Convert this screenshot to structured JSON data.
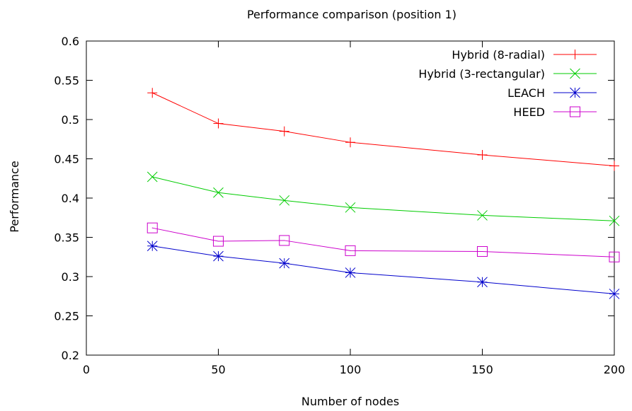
{
  "chart_data": {
    "type": "line",
    "title": "Performance comparison (position 1)",
    "xlabel": "Number of nodes",
    "ylabel": "Performance",
    "xlim": [
      0,
      200
    ],
    "ylim": [
      0.2,
      0.6
    ],
    "x_ticks": [
      0,
      50,
      100,
      150,
      200
    ],
    "x_tick_labels": [
      "0",
      "50",
      "100",
      "150",
      "200"
    ],
    "y_ticks": [
      0.2,
      0.25,
      0.3,
      0.35,
      0.4,
      0.45,
      0.5,
      0.55,
      0.6
    ],
    "y_tick_labels": [
      "0.2",
      "0.25",
      "0.3",
      "0.35",
      "0.4",
      "0.45",
      "0.5",
      "0.55",
      "0.6"
    ],
    "grid": false,
    "legend_position": "top-right",
    "x": [
      25,
      50,
      75,
      100,
      150,
      200
    ],
    "series": [
      {
        "name": "Hybrid (8-radial)",
        "values": [
          0.534,
          0.495,
          0.485,
          0.471,
          0.455,
          0.441
        ],
        "color": "#ff0000",
        "marker": "plus"
      },
      {
        "name": "Hybrid (3-rectangular)",
        "values": [
          0.427,
          0.407,
          0.397,
          0.388,
          0.378,
          0.371
        ],
        "color": "#00cc00",
        "marker": "cross"
      },
      {
        "name": "LEACH",
        "values": [
          0.339,
          0.326,
          0.317,
          0.305,
          0.293,
          0.278
        ],
        "color": "#0000cc",
        "marker": "asterisk"
      },
      {
        "name": "HEED",
        "values": [
          0.362,
          0.345,
          0.346,
          0.333,
          0.332,
          0.325
        ],
        "color": "#cc00cc",
        "marker": "box"
      }
    ]
  }
}
